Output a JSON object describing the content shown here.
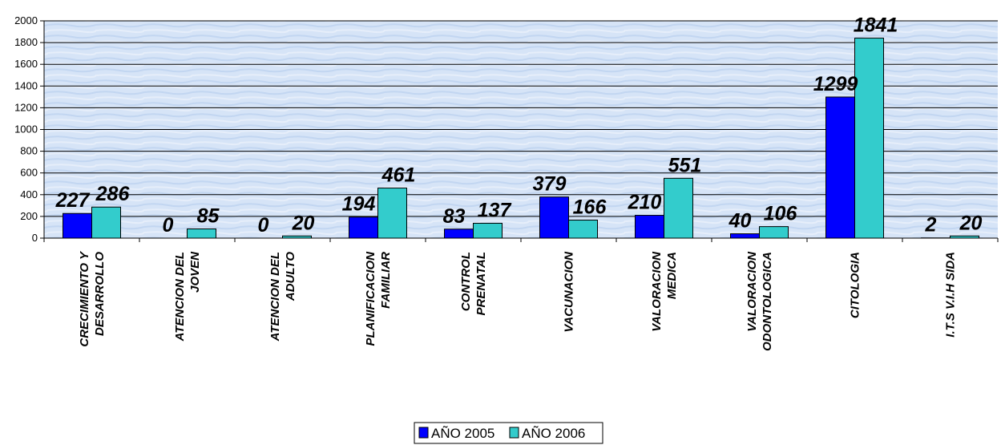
{
  "chart_data": {
    "type": "bar",
    "categories": [
      [
        "CRECIMIENTO Y",
        "DESARROLLO"
      ],
      [
        "ATENCION DEL",
        "JOVEN"
      ],
      [
        "ATENCION DEL",
        "ADULTO"
      ],
      [
        "PLANIFICACION",
        "FAMILIAR"
      ],
      [
        "CONTROL",
        "PRENATAL"
      ],
      [
        "VACUNACION"
      ],
      [
        "VALORACION",
        "MEDICA"
      ],
      [
        "VALORACION",
        "ODONTOLOGICA"
      ],
      [
        "CITOLOGIA"
      ],
      [
        "I.T.S   V.I.H   SIDA"
      ]
    ],
    "series": [
      {
        "name": "AÑO 2005",
        "values": [
          227,
          0,
          0,
          194,
          83,
          379,
          210,
          40,
          1299,
          2
        ]
      },
      {
        "name": "AÑO 2006",
        "values": [
          286,
          85,
          20,
          461,
          137,
          166,
          551,
          106,
          1841,
          20
        ]
      }
    ],
    "ylim": [
      0,
      2000
    ],
    "yticks": [
      0,
      200,
      400,
      600,
      800,
      1000,
      1200,
      1400,
      1600,
      1800,
      2000
    ],
    "grid": true,
    "legend": "bottom-center",
    "colors": {
      "AÑO 2005": "#0000ff",
      "AÑO 2006": "#33cccc"
    }
  }
}
